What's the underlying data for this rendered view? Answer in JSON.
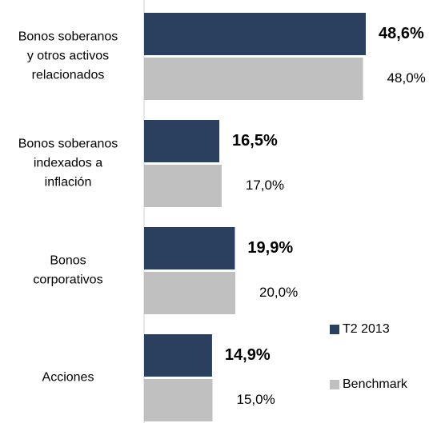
{
  "chart_data": {
    "type": "hbar",
    "categories": [
      "Bonos soberanos\ny otros activos\nrelacionados",
      "Bonos soberanos\nindexados a\ninflación",
      "Bonos\ncorporativos",
      "Acciones"
    ],
    "series": [
      {
        "name": "T2 2013",
        "color": "#2b3f5e",
        "values": [
          48.6,
          16.5,
          19.9,
          14.9
        ],
        "value_labels": [
          "48,6%",
          "16,5%",
          "19,9%",
          "14,9%"
        ]
      },
      {
        "name": "Benchmark",
        "color": "#c0c0c0",
        "values": [
          48.0,
          17.0,
          20.0,
          15.0
        ],
        "value_labels": [
          "48,0%",
          "17,0%",
          "20,0%",
          "15,0%"
        ]
      }
    ],
    "xlim": [
      0,
      60
    ]
  }
}
